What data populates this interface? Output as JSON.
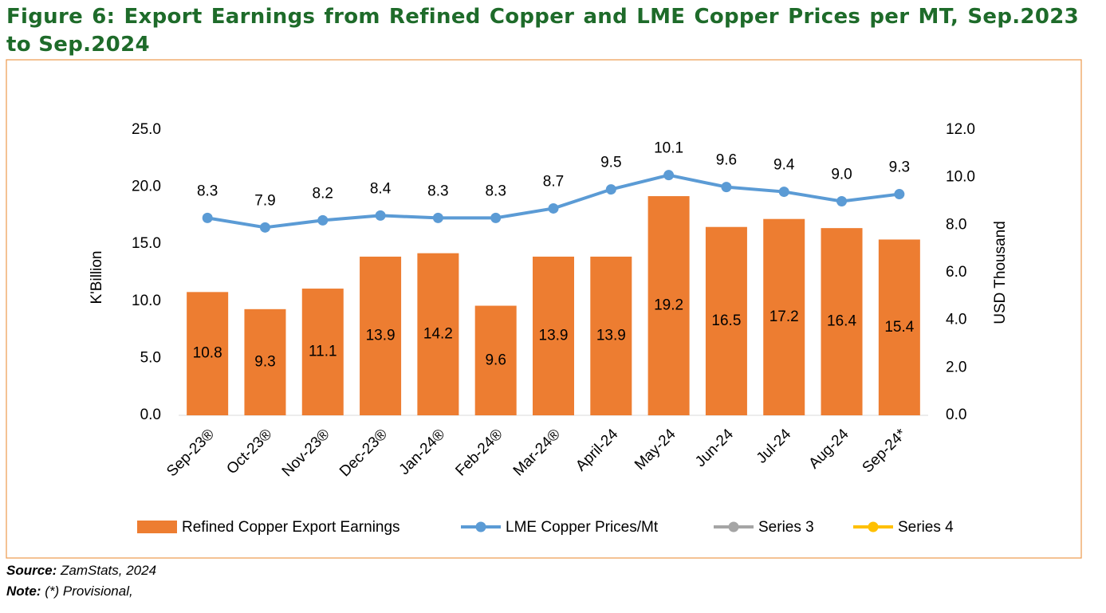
{
  "chart_data": {
    "type": "bar_line",
    "title": "Figure 6: Export Earnings from Refined Copper and LME Copper Prices per MT, Sep.2023 to Sep.2024",
    "categories": [
      "Sep-23®",
      "Oct-23®",
      "Nov-23®",
      "Dec-23®",
      "Jan-24®",
      "Feb-24®",
      "Mar-24®",
      "April-24",
      "May-24",
      "Jun-24",
      "Jul-24",
      "Aug-24",
      "Sep-24*"
    ],
    "series": [
      {
        "name": "Refined Copper Export Earnings",
        "color": "#ed7d31",
        "kind": "bar",
        "axis": "y",
        "values": [
          10.8,
          9.3,
          11.1,
          13.9,
          14.2,
          9.6,
          13.9,
          13.9,
          19.2,
          16.5,
          17.2,
          16.4,
          15.4
        ]
      },
      {
        "name": "LME Copper Prices/Mt",
        "color": "#5b9bd5",
        "kind": "line",
        "axis": "y2",
        "values": [
          8.3,
          7.9,
          8.2,
          8.4,
          8.3,
          8.3,
          8.7,
          9.5,
          10.1,
          9.6,
          9.4,
          9.0,
          9.3
        ],
        "value_labels": [
          "8.3",
          "7.9",
          "8.2",
          "8.4",
          "8.3",
          "8.3",
          "8.7",
          "9.5",
          "10.1",
          "9.6",
          "9.4",
          "9.0",
          "9.3"
        ]
      },
      {
        "name": "Series 3",
        "color": "#a5a5a5",
        "kind": "line",
        "axis": "y2",
        "values": [
          null,
          null,
          null,
          null,
          null,
          null,
          null,
          null,
          null,
          null,
          null,
          null,
          null
        ]
      },
      {
        "name": "Series 4",
        "color": "#ffc000",
        "kind": "line",
        "axis": "y2",
        "values": [
          null,
          null,
          null,
          null,
          null,
          null,
          null,
          null,
          null,
          null,
          null,
          null,
          null
        ]
      }
    ],
    "ylabel": "K'Billion",
    "y2label": "USD Thousand",
    "ylim": [
      0,
      25
    ],
    "yticks": [
      {
        "value": 0,
        "label": "0.0"
      },
      {
        "value": 5,
        "label": "5.0"
      },
      {
        "value": 10,
        "label": "10.0"
      },
      {
        "value": 15,
        "label": "15.0"
      },
      {
        "value": 20,
        "label": "20.0"
      },
      {
        "value": 25,
        "label": "25.0"
      }
    ],
    "y2lim": [
      0,
      12
    ],
    "y2ticks": [
      {
        "value": 0,
        "label": "0.0"
      },
      {
        "value": 2,
        "label": "2.0"
      },
      {
        "value": 4,
        "label": "4.0"
      },
      {
        "value": 6,
        "label": "6.0"
      },
      {
        "value": 8,
        "label": "8.0"
      },
      {
        "value": 10,
        "label": "10.0"
      },
      {
        "value": 12,
        "label": "12.0"
      }
    ],
    "grid": false,
    "legend": "bottom",
    "source_label": "Source:",
    "source": "ZamStats, 2024",
    "note_label": "Note:",
    "note": "(*) Provisional,"
  }
}
